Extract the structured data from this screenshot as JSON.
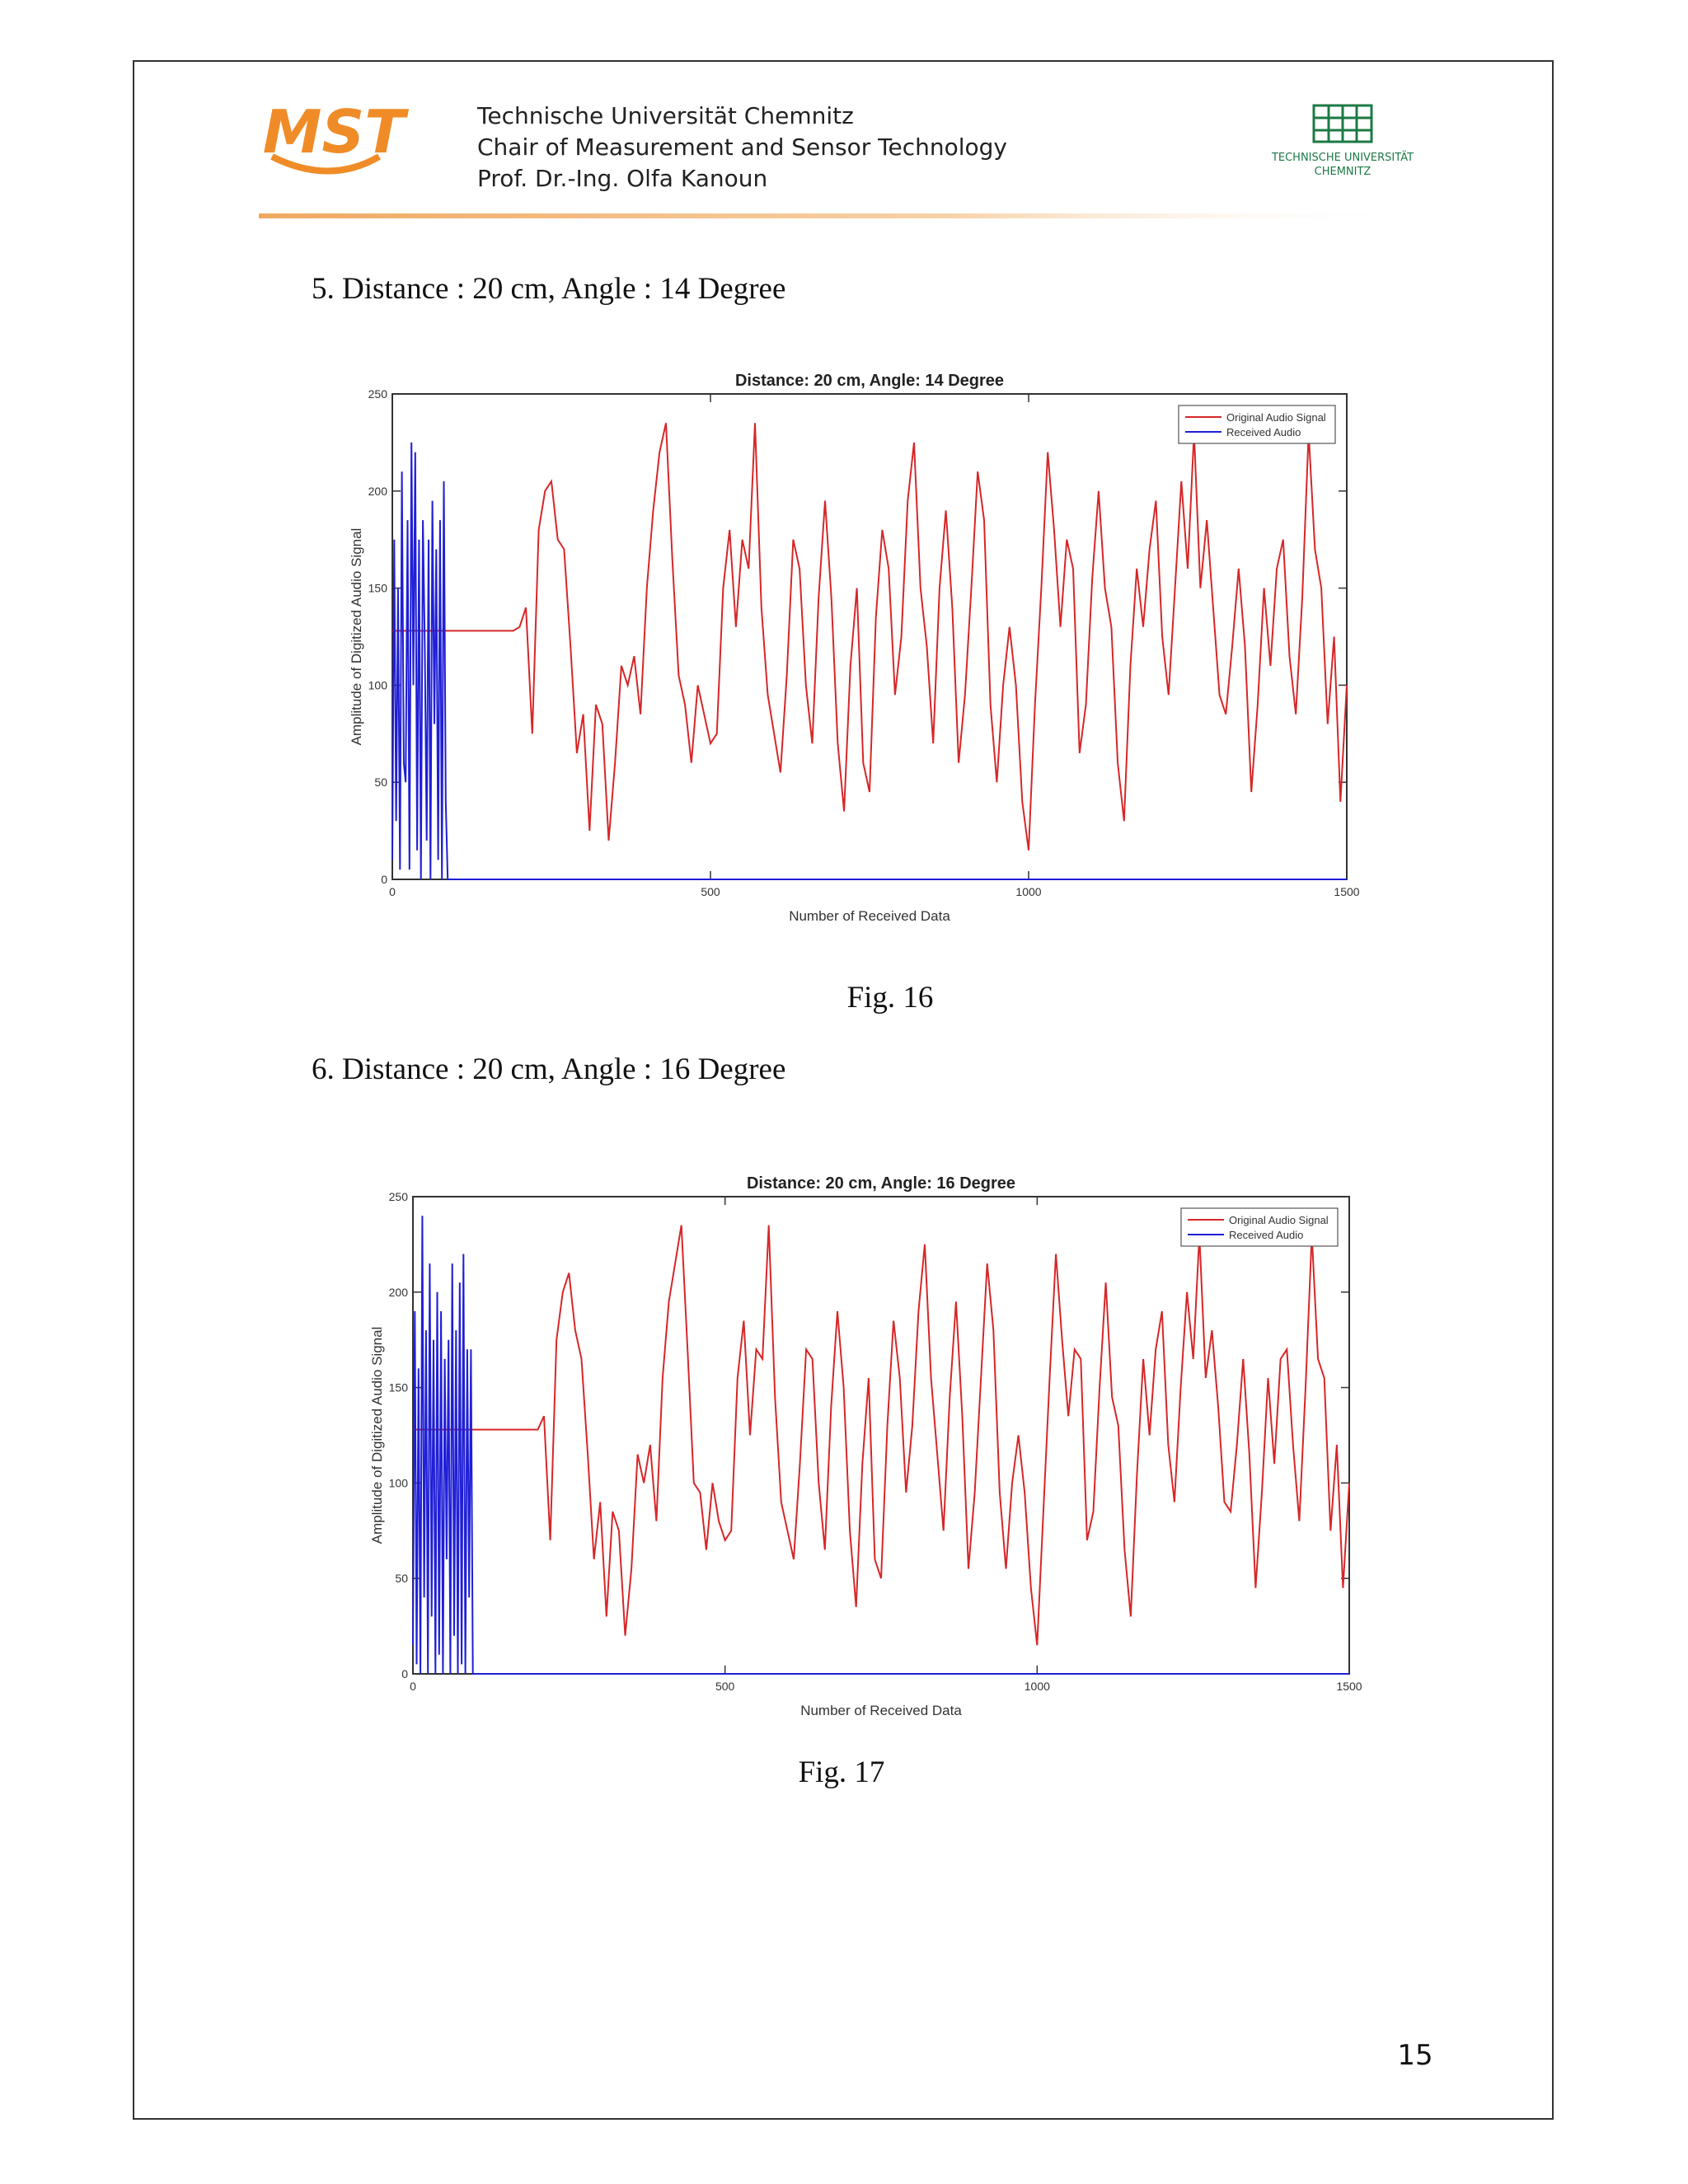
{
  "header": {
    "logo": "MST",
    "lines": [
      "Technische Universität Chemnitz",
      "Chair of Measurement and Sensor Technology",
      "Prof. Dr.-Ing. Olfa Kanoun"
    ],
    "tu_logo": [
      "TECHNISCHE UNIVERSITÄT",
      "CHEMNITZ"
    ]
  },
  "sections": [
    {
      "heading": "5.   Distance : 20 cm, Angle : 14 Degree",
      "caption": "Fig. 16"
    },
    {
      "heading": "6.   Distance : 20 cm, Angle : 16 Degree",
      "caption": "Fig. 17"
    }
  ],
  "page_number": "15",
  "chart_data": [
    {
      "type": "line",
      "title": "Distance: 20 cm, Angle: 14 Degree",
      "x_label": "Number of Received Data",
      "y_label": "Amplitude of Digitized Audio Signal",
      "xlim": [
        0,
        1500
      ],
      "ylim": [
        0,
        250
      ],
      "xticks": [
        0,
        500,
        1000,
        1500
      ],
      "yticks": [
        0,
        50,
        100,
        150,
        200,
        250
      ],
      "legend": "upper right",
      "series": [
        {
          "name": "Original Audio Signal",
          "color": "#d62728",
          "x": [
            0,
            10,
            20,
            30,
            40,
            50,
            60,
            70,
            80,
            90,
            100,
            110,
            120,
            130,
            140,
            150,
            160,
            170,
            180,
            190,
            200,
            210,
            220,
            230,
            240,
            250,
            260,
            270,
            280,
            290,
            300,
            310,
            320,
            330,
            340,
            350,
            360,
            370,
            380,
            390,
            400,
            410,
            420,
            430,
            440,
            450,
            460,
            470,
            480,
            490,
            500,
            510,
            520,
            530,
            540,
            550,
            560,
            570,
            580,
            590,
            600,
            610,
            620,
            630,
            640,
            650,
            660,
            670,
            680,
            690,
            700,
            710,
            720,
            730,
            740,
            750,
            760,
            770,
            780,
            790,
            800,
            810,
            820,
            830,
            840,
            850,
            860,
            870,
            880,
            890,
            900,
            910,
            920,
            930,
            940,
            950,
            960,
            970,
            980,
            990,
            1000,
            1010,
            1020,
            1030,
            1040,
            1050,
            1060,
            1070,
            1080,
            1090,
            1100,
            1110,
            1120,
            1130,
            1140,
            1150,
            1160,
            1170,
            1180,
            1190,
            1200,
            1210,
            1220,
            1230,
            1240,
            1250,
            1260,
            1270,
            1280,
            1290,
            1300,
            1310,
            1320,
            1330,
            1340,
            1350,
            1360,
            1370,
            1380,
            1390,
            1400,
            1410,
            1420,
            1430,
            1440,
            1450,
            1460,
            1470,
            1480,
            1490,
            1500
          ],
          "values": [
            128,
            128,
            128,
            128,
            128,
            128,
            128,
            128,
            128,
            128,
            128,
            128,
            128,
            128,
            128,
            128,
            128,
            128,
            128,
            128,
            130,
            140,
            75,
            180,
            200,
            205,
            175,
            170,
            120,
            65,
            85,
            25,
            90,
            80,
            20,
            60,
            110,
            100,
            115,
            85,
            150,
            190,
            220,
            235,
            165,
            105,
            90,
            60,
            100,
            85,
            70,
            75,
            150,
            180,
            130,
            175,
            160,
            235,
            140,
            95,
            75,
            55,
            105,
            175,
            160,
            100,
            70,
            145,
            195,
            145,
            70,
            35,
            110,
            150,
            60,
            45,
            135,
            180,
            160,
            95,
            125,
            195,
            225,
            150,
            120,
            70,
            150,
            190,
            140,
            60,
            95,
            150,
            210,
            185,
            90,
            50,
            100,
            130,
            100,
            40,
            15,
            90,
            150,
            220,
            180,
            130,
            175,
            160,
            65,
            90,
            155,
            200,
            150,
            130,
            60,
            30,
            110,
            160,
            130,
            170,
            195,
            125,
            95,
            150,
            205,
            160,
            230,
            150,
            185,
            140,
            95,
            85,
            120,
            160,
            120,
            45,
            90,
            150,
            110,
            160,
            175,
            115,
            85,
            145,
            230,
            170,
            150,
            80,
            125,
            40,
            100
          ]
        },
        {
          "name": "Received Audio",
          "color": "#1f1fd6",
          "x": [
            0,
            3,
            6,
            9,
            12,
            15,
            18,
            21,
            24,
            27,
            30,
            33,
            36,
            39,
            42,
            45,
            48,
            51,
            54,
            57,
            60,
            63,
            66,
            69,
            72,
            75,
            78,
            81,
            84,
            87,
            90,
            1500
          ],
          "values": [
            10,
            175,
            30,
            150,
            5,
            210,
            60,
            50,
            185,
            5,
            225,
            100,
            220,
            15,
            175,
            0,
            185,
            120,
            20,
            175,
            0,
            195,
            80,
            170,
            10,
            185,
            0,
            205,
            40,
            0,
            0,
            0
          ]
        }
      ]
    },
    {
      "type": "line",
      "title": "Distance: 20 cm, Angle: 16 Degree",
      "x_label": "Number of Received Data",
      "y_label": "Amplitude of Digitized Audio Signal",
      "xlim": [
        0,
        1500
      ],
      "ylim": [
        0,
        250
      ],
      "xticks": [
        0,
        500,
        1000,
        1500
      ],
      "yticks": [
        0,
        50,
        100,
        150,
        200,
        250
      ],
      "legend": "upper right",
      "series": [
        {
          "name": "Original Audio Signal",
          "color": "#d62728",
          "x": [
            0,
            10,
            20,
            30,
            40,
            50,
            60,
            70,
            80,
            90,
            100,
            110,
            120,
            130,
            140,
            150,
            160,
            170,
            180,
            190,
            200,
            210,
            220,
            230,
            240,
            250,
            260,
            270,
            280,
            290,
            300,
            310,
            320,
            330,
            340,
            350,
            360,
            370,
            380,
            390,
            400,
            410,
            420,
            430,
            440,
            450,
            460,
            470,
            480,
            490,
            500,
            510,
            520,
            530,
            540,
            550,
            560,
            570,
            580,
            590,
            600,
            610,
            620,
            630,
            640,
            650,
            660,
            670,
            680,
            690,
            700,
            710,
            720,
            730,
            740,
            750,
            760,
            770,
            780,
            790,
            800,
            810,
            820,
            830,
            840,
            850,
            860,
            870,
            880,
            890,
            900,
            910,
            920,
            930,
            940,
            950,
            960,
            970,
            980,
            990,
            1000,
            1010,
            1020,
            1030,
            1040,
            1050,
            1060,
            1070,
            1080,
            1090,
            1100,
            1110,
            1120,
            1130,
            1140,
            1150,
            1160,
            1170,
            1180,
            1190,
            1200,
            1210,
            1220,
            1230,
            1240,
            1250,
            1260,
            1270,
            1280,
            1290,
            1300,
            1310,
            1320,
            1330,
            1340,
            1350,
            1360,
            1370,
            1380,
            1390,
            1400,
            1410,
            1420,
            1430,
            1440,
            1450,
            1460,
            1470,
            1480,
            1490,
            1500
          ],
          "values": [
            128,
            128,
            128,
            128,
            128,
            128,
            128,
            128,
            128,
            128,
            128,
            128,
            128,
            128,
            128,
            128,
            128,
            128,
            128,
            128,
            128,
            135,
            70,
            175,
            200,
            210,
            180,
            165,
            115,
            60,
            90,
            30,
            85,
            75,
            20,
            55,
            115,
            100,
            120,
            80,
            155,
            195,
            215,
            235,
            170,
            100,
            95,
            65,
            100,
            80,
            70,
            75,
            155,
            185,
            125,
            170,
            165,
            235,
            145,
            90,
            75,
            60,
            110,
            170,
            165,
            100,
            65,
            140,
            190,
            150,
            75,
            35,
            110,
            155,
            60,
            50,
            130,
            185,
            155,
            95,
            130,
            190,
            225,
            155,
            115,
            75,
            145,
            195,
            135,
            55,
            95,
            155,
            215,
            180,
            95,
            55,
            100,
            125,
            95,
            45,
            15,
            85,
            155,
            220,
            175,
            135,
            170,
            165,
            70,
            85,
            150,
            205,
            145,
            130,
            65,
            30,
            105,
            165,
            125,
            170,
            190,
            120,
            90,
            150,
            200,
            165,
            230,
            155,
            180,
            140,
            90,
            85,
            120,
            165,
            115,
            45,
            95,
            155,
            110,
            165,
            170,
            120,
            80,
            150,
            230,
            165,
            155,
            75,
            120,
            45,
            100
          ]
        },
        {
          "name": "Received Audio",
          "color": "#1f1fd6",
          "x": [
            0,
            3,
            6,
            9,
            12,
            15,
            18,
            21,
            24,
            27,
            30,
            33,
            36,
            39,
            42,
            45,
            48,
            51,
            54,
            57,
            60,
            63,
            66,
            69,
            72,
            75,
            78,
            81,
            84,
            87,
            90,
            93,
            96,
            1500
          ],
          "values": [
            15,
            190,
            5,
            160,
            0,
            240,
            40,
            180,
            0,
            215,
            30,
            175,
            0,
            200,
            10,
            190,
            0,
            165,
            60,
            175,
            0,
            215,
            20,
            180,
            0,
            205,
            5,
            220,
            0,
            170,
            40,
            170,
            0,
            0
          ]
        }
      ]
    }
  ]
}
